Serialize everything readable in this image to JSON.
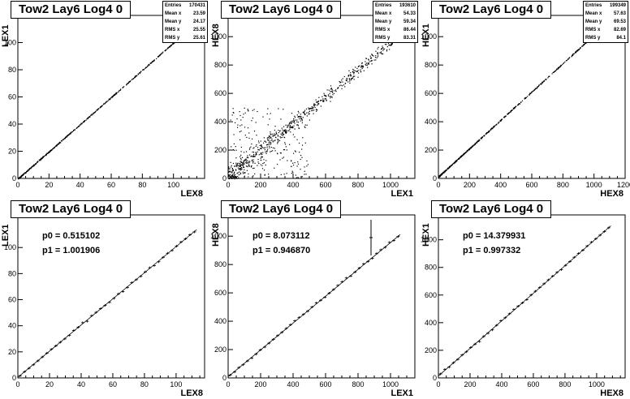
{
  "pads": [
    {
      "title": "Tow2 Lay6 Log4 0",
      "xlabel": "LEX8",
      "ylabel": "LEX1",
      "stats": [
        [
          "Entries",
          "170431"
        ],
        [
          "Mean x",
          "23.59"
        ],
        [
          "Mean y",
          "24.17"
        ],
        [
          "RMS x",
          "25.55"
        ],
        [
          "RMS y",
          "25.61"
        ]
      ],
      "fit": null
    },
    {
      "title": "Tow2 Lay6 Log4 0",
      "xlabel": "LEX1",
      "ylabel": "HEX8",
      "stats": [
        [
          "Entries",
          "193610"
        ],
        [
          "Mean x",
          "54.33"
        ],
        [
          "Mean y",
          "59.34"
        ],
        [
          "RMS x",
          "86.44"
        ],
        [
          "RMS y",
          "83.31"
        ]
      ],
      "fit": null
    },
    {
      "title": "Tow2 Lay6 Log4 0",
      "xlabel": "HEX8",
      "ylabel": "HEX1",
      "stats": [
        [
          "Entries",
          "199349"
        ],
        [
          "Mean x",
          "57.63"
        ],
        [
          "Mean y",
          "69.53"
        ],
        [
          "RMS x",
          "82.69"
        ],
        [
          "RMS y",
          "84.1"
        ]
      ],
      "fit": null
    },
    {
      "title": "Tow2 Lay6 Log4 0",
      "xlabel": "LEX8",
      "ylabel": "LEX1",
      "stats": null,
      "fit": {
        "p0": "p0 = 0.515102",
        "p1": "p1 = 1.001906"
      }
    },
    {
      "title": "Tow2 Lay6 Log4 0",
      "xlabel": "LEX1",
      "ylabel": "HEX8",
      "stats": null,
      "fit": {
        "p0": "p0 = 8.073112",
        "p1": "p1 = 0.946870"
      }
    },
    {
      "title": "Tow2 Lay6 Log4 0",
      "xlabel": "HEX8",
      "ylabel": "HEX1",
      "stats": null,
      "fit": {
        "p0": "p0 = 14.379931",
        "p1": "p1 = 0.997332"
      }
    }
  ],
  "chart_data": [
    {
      "type": "scatter",
      "title": "Tow2 Lay6 Log4 0",
      "xlabel": "LEX8",
      "ylabel": "LEX1",
      "xlim": [
        0,
        120
      ],
      "ylim": [
        0,
        120
      ],
      "xticks": [
        0,
        20,
        40,
        60,
        80,
        100
      ],
      "yticks": [
        0,
        20,
        40,
        60,
        80,
        100
      ],
      "slope": 1.0,
      "intercept": 0,
      "xmax_data": 108
    },
    {
      "type": "scatter",
      "title": "Tow2 Lay6 Log4 0",
      "xlabel": "LEX1",
      "ylabel": "HEX8",
      "xlim": [
        0,
        1150
      ],
      "ylim": [
        0,
        1150
      ],
      "xticks": [
        0,
        200,
        400,
        600,
        800,
        1000
      ],
      "yticks": [
        0,
        200,
        400,
        600,
        800,
        1000
      ],
      "slope": 0.95,
      "intercept": 8,
      "xmax_data": 1100
    },
    {
      "type": "scatter",
      "title": "Tow2 Lay6 Log4 0",
      "xlabel": "HEX8",
      "ylabel": "HEX1",
      "xlim": [
        0,
        1200
      ],
      "ylim": [
        0,
        1150
      ],
      "xticks": [
        0,
        200,
        400,
        600,
        800,
        1000,
        1200
      ],
      "yticks": [
        0,
        200,
        400,
        600,
        800,
        1000
      ],
      "slope": 1.0,
      "intercept": 14,
      "xmax_data": 1000
    },
    {
      "type": "line",
      "title": "Tow2 Lay6 Log4 0",
      "xlabel": "LEX8",
      "ylabel": "LEX1",
      "xlim": [
        0,
        118
      ],
      "ylim": [
        0,
        125
      ],
      "xticks": [
        0,
        20,
        40,
        60,
        80,
        100
      ],
      "yticks": [
        0,
        20,
        40,
        60,
        80,
        100
      ],
      "p0": 0.515102,
      "p1": 1.001906,
      "xmax_data": 113
    },
    {
      "type": "line",
      "title": "Tow2 Lay6 Log4 0",
      "xlabel": "LEX1",
      "ylabel": "HEX8",
      "xlim": [
        0,
        1150
      ],
      "ylim": [
        0,
        1150
      ],
      "xticks": [
        0,
        200,
        400,
        600,
        800,
        1000
      ],
      "yticks": [
        0,
        200,
        400,
        600,
        800,
        1000
      ],
      "p0": 8.073112,
      "p1": 0.94687,
      "xmax_data": 1060
    },
    {
      "type": "line",
      "title": "Tow2 Lay6 Log4 0",
      "xlabel": "HEX8",
      "ylabel": "HEX1",
      "xlim": [
        0,
        1180
      ],
      "ylim": [
        0,
        1180
      ],
      "xticks": [
        0,
        200,
        400,
        600,
        800,
        1000
      ],
      "yticks": [
        0,
        200,
        400,
        600,
        800,
        1000
      ],
      "p0": 14.379931,
      "p1": 0.997332,
      "xmax_data": 1090
    }
  ]
}
